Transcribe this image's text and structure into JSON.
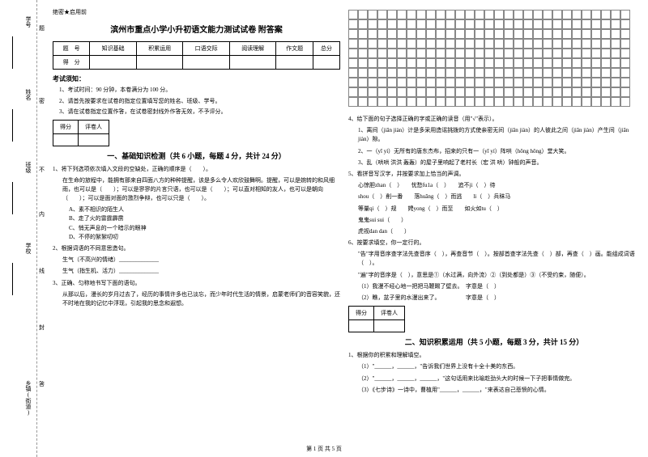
{
  "sidebar": {
    "items": [
      "学号",
      "姓名",
      "班级",
      "学校",
      "乡镇(街道)"
    ],
    "markers": [
      "题",
      "密",
      "不",
      "内",
      "线",
      "封",
      "答"
    ]
  },
  "confidential": "绝密★启用前",
  "title": "滨州市重点小学小升初语文能力测试试卷 附答案",
  "score_table": {
    "headers": [
      "题　号",
      "知识基础",
      "积累运用",
      "口语交际",
      "阅读理解",
      "作文题",
      "总分"
    ],
    "row2": [
      "得　分",
      "",
      "",
      "",
      "",
      "",
      ""
    ]
  },
  "notice": {
    "title": "考试须知：",
    "items": [
      "1、考试时间：90 分钟，本卷满分为 100 分。",
      "2、请首先按要求在试卷的指定位置填写您的姓名、班级、学号。",
      "3、请在试卷指定位置作答，在试卷密封线外作答无效，不予评分。"
    ]
  },
  "section_score": {
    "c1": "得分",
    "c2": "评卷人"
  },
  "section1": {
    "title": "一、基础知识检测（共 6 小题，每题 4 分，共计 24 分）",
    "q1": {
      "stem": "1、将下列选项依次填入文段的空缺处，正确的顺序是（　　）。",
      "body": "在生命的旅程中，能拥有那来自四面八方的种种提醒，该是多么令人欢欣鼓舞啊。提醒，可以是婉转的和风细雨，也可以是（　　）；可以是寥寥的片言只语，也可以是（　　）；可以直对相知的友人，也可以是朝向（　　）；可以是面对面的激烈争辩，也可以只是（　　）。",
      "opts": [
        "A、素不相识的陌生人",
        "B、走了火的雷霆霹雳",
        "C、悄无声息的一个暗示的眼神",
        "D、不停的絮絮叨叨"
      ]
    },
    "q2": {
      "stem": "2、根据词语的不同意思造句。",
      "l1": "生气（不高兴的情绪）______________",
      "l2": "生气（指生机、活力）______________"
    },
    "q3": {
      "stem": "3、正确、匀称地书写下面的语句。",
      "body": "从那以后，漫长的岁月过去了，经历的事情许多也已淡忘，而少年时代生活的情景，启蒙老师们的音容笑貌，还不时地在我的记忆中浮现，引起我的思念和遐想。"
    },
    "q4": {
      "stem": "4、给下面的句子选择正确的字或正确的读音（用\"√\"表示）。",
      "l1": "1、离间（jiān jiàn）计是多采用造谣挑拨的方式使亲密无间（jiān jiàn）的人彼此之间（jiān jiàn）产生间（jiān jiàn）隙。",
      "l2": "2、一（yī yí）无所有的唐东杰布，招来的只有一（yī yí）阵哄（hōng hǒng）堂大笑。",
      "l3": "3、乱（哄哄 洪洪 轰轰）的屋子里响起了老村长（宏 洪 哄）钟般的声音。"
    },
    "q5": {
      "stem": "5、看拼音写汉字，并按要求加上恰当的声调。",
      "l1": "心惊胆zhan（　）　　忧愁fu1a（　）　　追不ji（　）待",
      "l2": "shou（　）削一番　　落huāng（　）而逃　　li（　）兵秣马",
      "l3": "等量qi（　）规　　娉yong（　）而至　　如火如tu（　）",
      "l4": "鬼鬼sui sui（　　）",
      "l5": "虎视dan dan（　　）"
    },
    "q6": {
      "stem": "6、按要求填空，你一定行的。",
      "l1": "\"告\"字用音序查字法先查音序（　），再查音节（　）。按部首查字法先查（　）部，再查（　）画。能组成词语（　）。",
      "l2": "\"遍\"字的音序是（　），意思是①（水过满，向外流）②（到处都是）③（不受约束，随便）。",
      "l3": "（1）我漫不经心地一把把马鞭踢了壁去。　字意是（　）",
      "l4": "（2）瞧，盆子里的水漫出来了。　　　　　字意是（　）"
    }
  },
  "section2": {
    "title": "二、知识积累运用（共 5 小题，每题 3 分，共计 15 分）",
    "q1": {
      "stem": "1、根据你的积累和理解填空。",
      "l1": "（1）\"______，______，\"告诉我们世界上没有十全十美的东西。",
      "l2": "（2）\"______，______，______，\"这句话用来比喻趁劲头大的时候一下子把事情做完。",
      "l3": "（3）《七步诗》一诗中，曹植用\"______，______，\"来表达自己悲愤的心情。"
    }
  },
  "footer": "第 1 页 共 5 页"
}
